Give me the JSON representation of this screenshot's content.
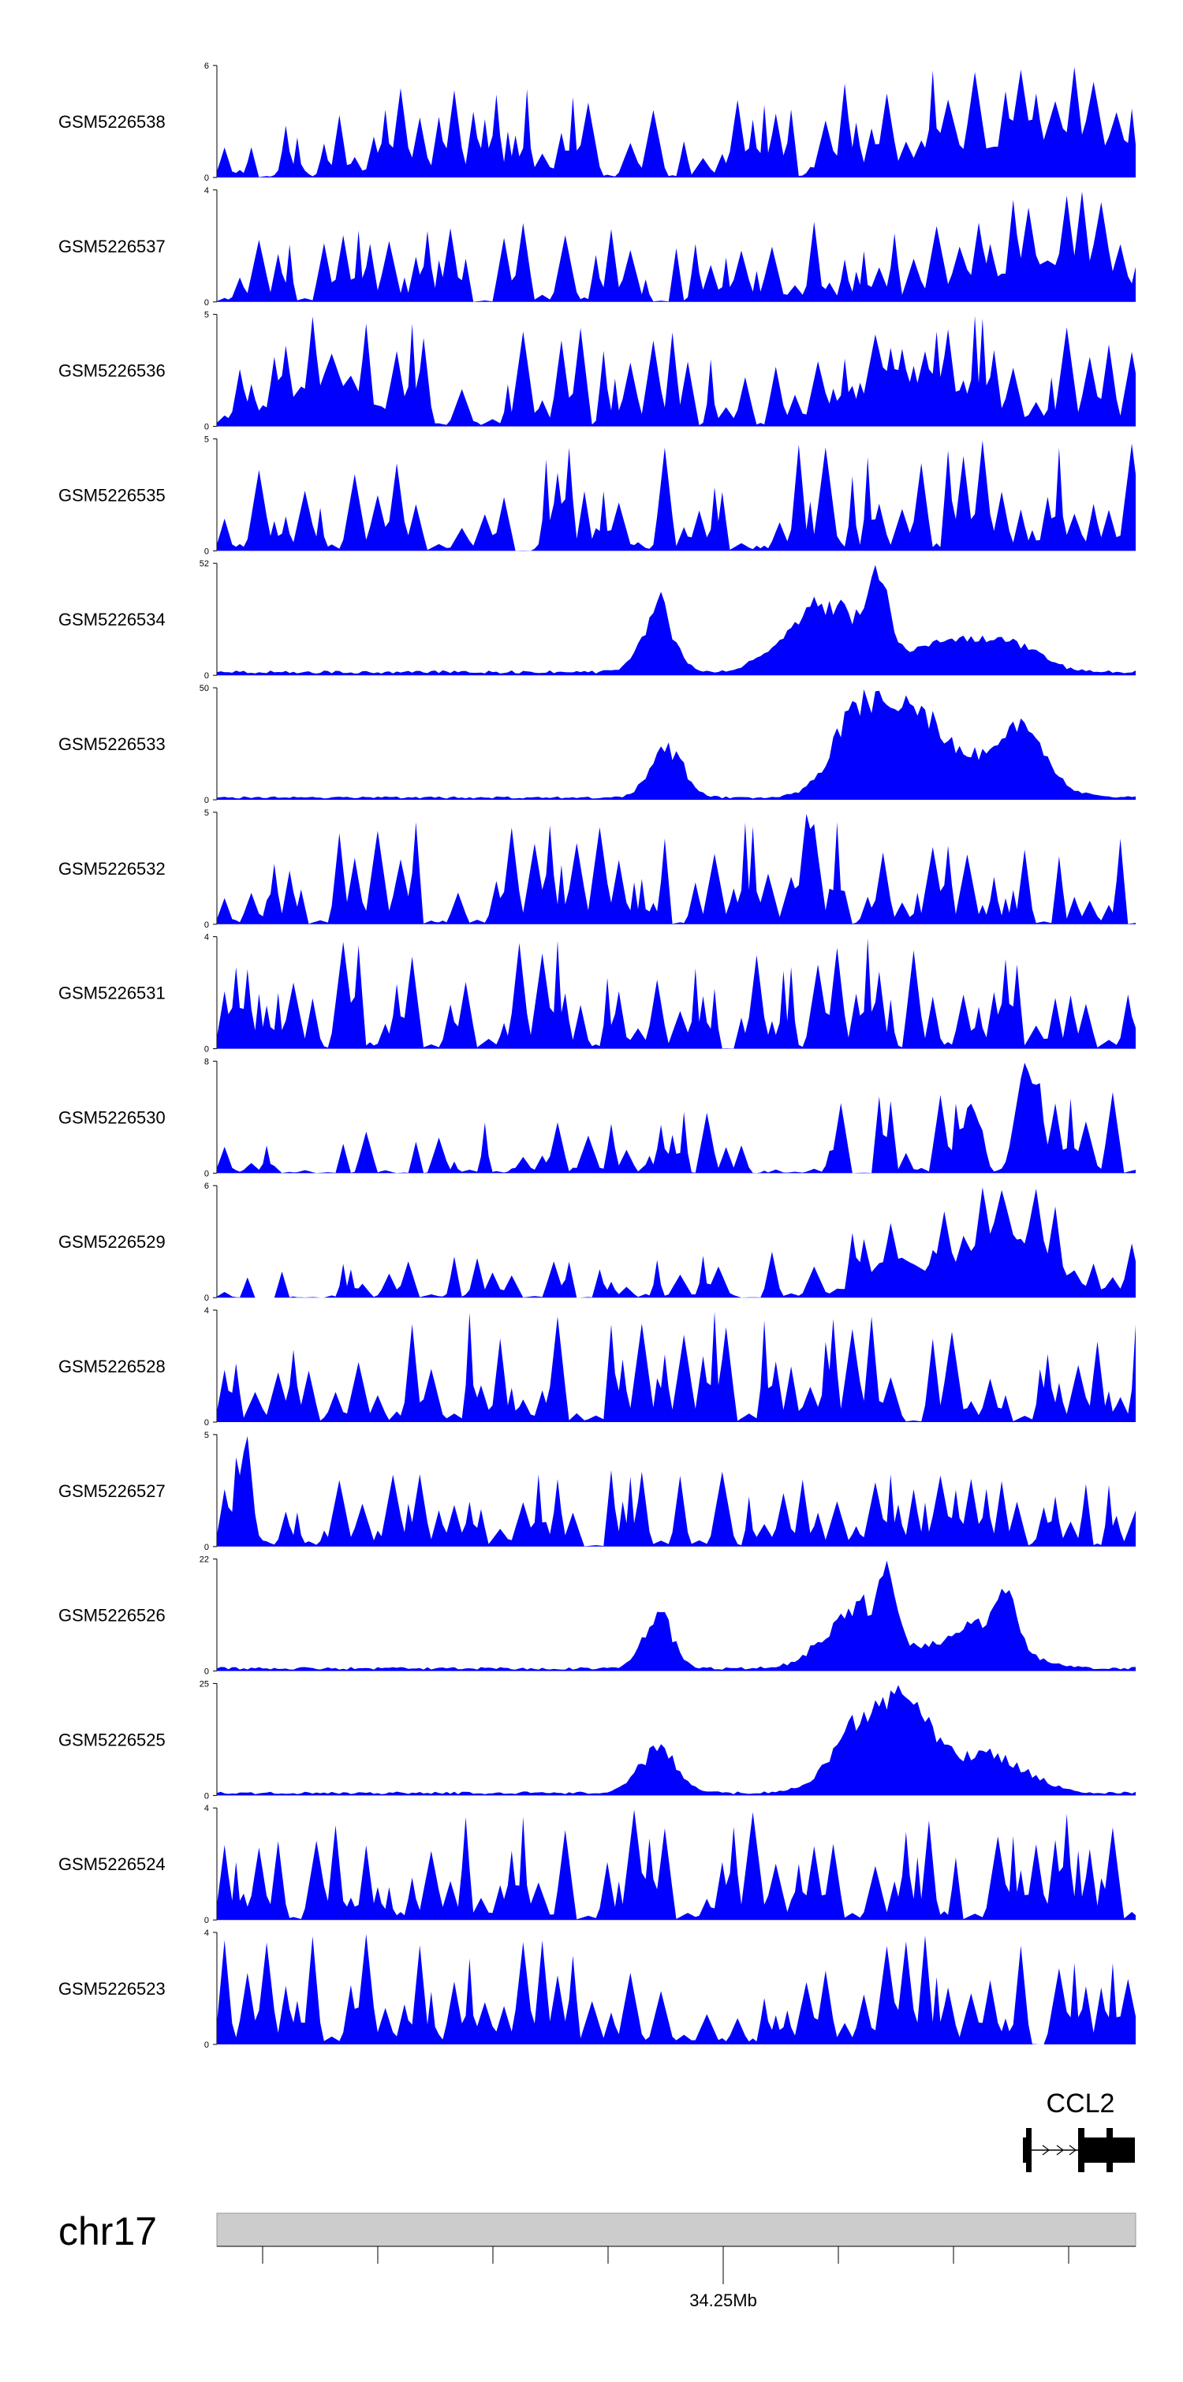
{
  "chart_data": {
    "type": "area",
    "title": "",
    "series_color": "#0000ff",
    "ideogram_color": "#cccccc",
    "tracks": [
      {
        "name": "GSM5226538",
        "ymax": 6,
        "ymin": 0,
        "profile": "noisy",
        "seed": 538,
        "bumps": [
          [
            0.88,
            0.1,
            0.3
          ]
        ]
      },
      {
        "name": "GSM5226537",
        "ymax": 4,
        "ymin": 0,
        "profile": "noisy",
        "seed": 537,
        "bumps": [
          [
            0.9,
            0.06,
            0.35
          ]
        ]
      },
      {
        "name": "GSM5226536",
        "ymax": 5,
        "ymin": 0,
        "profile": "noisy",
        "seed": 536,
        "bumps": [
          [
            0.12,
            0.05,
            0.3
          ],
          [
            0.75,
            0.05,
            0.3
          ]
        ]
      },
      {
        "name": "GSM5226535",
        "ymax": 5,
        "ymin": 0,
        "profile": "noisy",
        "seed": 535,
        "bumps": []
      },
      {
        "name": "GSM5226534",
        "ymax": 52,
        "ymin": 0,
        "profile": "peaks",
        "seed": 534,
        "bumps": [
          [
            0.48,
            0.018,
            0.35
          ],
          [
            0.485,
            0.004,
            0.2
          ],
          [
            0.66,
            0.04,
            0.45
          ],
          [
            0.72,
            0.012,
            0.45
          ],
          [
            0.8,
            0.04,
            0.2
          ],
          [
            0.87,
            0.03,
            0.15
          ]
        ]
      },
      {
        "name": "GSM5226533",
        "ymax": 50,
        "ymin": 0,
        "profile": "peaks",
        "seed": 533,
        "bumps": [
          [
            0.49,
            0.018,
            0.45
          ],
          [
            0.7,
            0.03,
            0.75
          ],
          [
            0.76,
            0.03,
            0.6
          ],
          [
            0.84,
            0.05,
            0.35
          ],
          [
            0.88,
            0.02,
            0.45
          ]
        ]
      },
      {
        "name": "GSM5226532",
        "ymax": 5,
        "ymin": 0,
        "profile": "noisy",
        "seed": 532,
        "bumps": [
          [
            0.64,
            0.004,
            0.6
          ]
        ]
      },
      {
        "name": "GSM5226531",
        "ymax": 4,
        "ymin": 0,
        "profile": "noisy",
        "seed": 531,
        "bumps": []
      },
      {
        "name": "GSM5226530",
        "ymax": 8,
        "ymin": 0,
        "profile": "sparse",
        "seed": 530,
        "bumps": [
          [
            0.88,
            0.01,
            0.9
          ],
          [
            0.82,
            0.008,
            0.6
          ]
        ]
      },
      {
        "name": "GSM5226529",
        "ymax": 6,
        "ymin": 0,
        "profile": "sparse",
        "seed": 529,
        "bumps": [
          [
            0.86,
            0.04,
            0.6
          ],
          [
            0.74,
            0.03,
            0.4
          ]
        ]
      },
      {
        "name": "GSM5226528",
        "ymax": 4,
        "ymin": 0,
        "profile": "noisy",
        "seed": 528,
        "bumps": []
      },
      {
        "name": "GSM5226527",
        "ymax": 5,
        "ymin": 0,
        "profile": "noisy",
        "seed": 527,
        "bumps": [
          [
            0.03,
            0.008,
            0.7
          ]
        ]
      },
      {
        "name": "GSM5226526",
        "ymax": 22,
        "ymin": 0,
        "profile": "peaks",
        "seed": 526,
        "bumps": [
          [
            0.48,
            0.015,
            0.45
          ],
          [
            0.7,
            0.035,
            0.5
          ],
          [
            0.73,
            0.008,
            0.5
          ],
          [
            0.83,
            0.04,
            0.35
          ],
          [
            0.86,
            0.01,
            0.35
          ]
        ]
      },
      {
        "name": "GSM5226525",
        "ymax": 25,
        "ymin": 0,
        "profile": "peaks",
        "seed": 525,
        "bumps": [
          [
            0.48,
            0.02,
            0.35
          ],
          [
            0.71,
            0.035,
            0.6
          ],
          [
            0.76,
            0.025,
            0.45
          ],
          [
            0.84,
            0.04,
            0.3
          ]
        ]
      },
      {
        "name": "GSM5226524",
        "ymax": 4,
        "ymin": 0,
        "profile": "noisy",
        "seed": 524,
        "bumps": []
      },
      {
        "name": "GSM5226523",
        "ymax": 4,
        "ymin": 0,
        "profile": "noisy",
        "seed": 523,
        "bumps": []
      }
    ],
    "gene": {
      "name": "CCL2",
      "strand": "+"
    },
    "chromosome": "chr17",
    "position_label": "34.25Mb"
  }
}
